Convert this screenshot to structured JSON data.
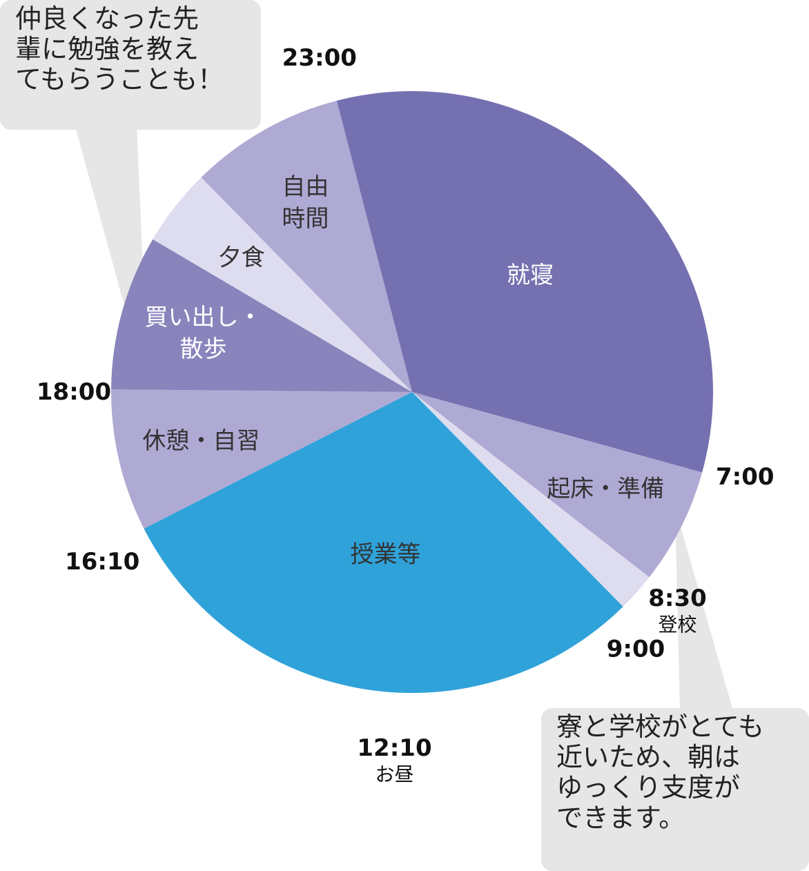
{
  "chart_data": {
    "type": "pie",
    "unit": "hours",
    "slices": [
      {
        "label": [
          "就寝"
        ],
        "start": "23:00",
        "end": "7:00",
        "value": 8.0,
        "color": "#7570b0",
        "text_color": "#ffffff"
      },
      {
        "label": [
          "起床・準備"
        ],
        "start": "7:00",
        "end": "8:30",
        "value": 1.5,
        "color": "#aeaad4",
        "text_color": "#333333"
      },
      {
        "label": [
          ""
        ],
        "start": "8:30",
        "end": "9:00",
        "value": 0.5,
        "color": "#dedcef",
        "text_color": "#333333"
      },
      {
        "label": [
          "授業等"
        ],
        "start": "9:00",
        "end": "16:10",
        "value": 7.1667,
        "color": "#2fa2da",
        "text_color": "#333333"
      },
      {
        "label": [
          "休憩・自習"
        ],
        "start": "16:10",
        "end": "18:00",
        "value": 1.8333,
        "color": "#aeaad4",
        "text_color": "#333333"
      },
      {
        "label": [
          "買い出し・",
          "散歩"
        ],
        "start": "18:00",
        "end": "20:00",
        "value": 2.0,
        "color": "#8a84bc",
        "text_color": "#ffffff"
      },
      {
        "label": [
          "夕食"
        ],
        "start": "20:00",
        "end": "21:00",
        "value": 1.0,
        "color": "#dedcef",
        "text_color": "#333333"
      },
      {
        "label": [
          "自由",
          "時間"
        ],
        "start": "21:00",
        "end": "23:00",
        "value": 2.0,
        "color": "#aeaad4",
        "text_color": "#333333"
      }
    ],
    "time_marks": [
      {
        "time": "23:00",
        "sub": ""
      },
      {
        "time": "7:00",
        "sub": ""
      },
      {
        "time": "8:30",
        "sub": "登校"
      },
      {
        "time": "9:00",
        "sub": ""
      },
      {
        "time": "12:10",
        "sub": "お昼"
      },
      {
        "time": "16:10",
        "sub": ""
      },
      {
        "time": "18:00",
        "sub": ""
      }
    ]
  },
  "callouts": {
    "top_left": {
      "lines": [
        "仲良くなった先",
        "輩に勉強を教え",
        "てもらうことも！"
      ],
      "color": "#e6e6e6"
    },
    "bottom_right": {
      "lines": [
        "寮と学校がとても",
        "近いため、朝は",
        "ゆっくり支度が",
        "できます。"
      ],
      "color": "#e6e6e6"
    }
  }
}
